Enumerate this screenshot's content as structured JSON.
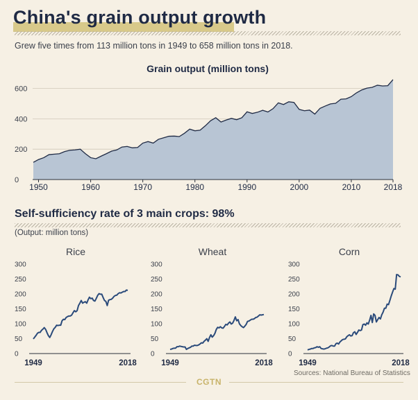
{
  "header": {
    "title": "China's grain output growth",
    "subtitle": "Grew five times from 113 million tons in 1949 to 658 million tons in 2018."
  },
  "section": {
    "title": "Self-sufficiency rate of 3 main crops: 98%",
    "unit_note": "(Output: million tons)"
  },
  "footer": {
    "brand": "CGTN",
    "source": "Sources: National Bureau of Statistics"
  },
  "colors": {
    "background": "#f6f0e4",
    "area_fill": "#b8c5d4",
    "line": "#2a4a7a",
    "text": "#1f2a44",
    "accent": "#d8c98a"
  },
  "chart_data": [
    {
      "type": "area",
      "title": "Grain output (million tons)",
      "xlim": [
        1949,
        2018
      ],
      "ylim": [
        0,
        680
      ],
      "yticks": [
        0,
        200,
        400,
        600
      ],
      "xticks": [
        1950,
        1960,
        1970,
        1980,
        1990,
        2000,
        2010,
        2018
      ],
      "grid": true,
      "x": [
        1949,
        1950,
        1951,
        1952,
        1953,
        1954,
        1955,
        1956,
        1957,
        1958,
        1959,
        1960,
        1961,
        1962,
        1963,
        1964,
        1965,
        1966,
        1967,
        1968,
        1969,
        1970,
        1971,
        1972,
        1973,
        1974,
        1975,
        1976,
        1977,
        1978,
        1979,
        1980,
        1981,
        1982,
        1983,
        1984,
        1985,
        1986,
        1987,
        1988,
        1989,
        1990,
        1991,
        1992,
        1993,
        1994,
        1995,
        1996,
        1997,
        1998,
        1999,
        2000,
        2001,
        2002,
        2003,
        2004,
        2005,
        2006,
        2007,
        2008,
        2009,
        2010,
        2011,
        2012,
        2013,
        2014,
        2015,
        2016,
        2017,
        2018
      ],
      "series": [
        {
          "values": [
            113,
            132,
            144,
            164,
            167,
            170,
            184,
            193,
            195,
            200,
            170,
            144,
            137,
            154,
            170,
            187,
            195,
            214,
            218,
            209,
            211,
            240,
            250,
            240,
            265,
            275,
            285,
            286,
            283,
            305,
            332,
            321,
            325,
            354,
            387,
            407,
            379,
            392,
            403,
            394,
            407,
            446,
            435,
            443,
            456,
            445,
            467,
            505,
            494,
            512,
            508,
            462,
            453,
            457,
            431,
            469,
            484,
            498,
            502,
            529,
            531,
            546,
            571,
            590,
            602,
            607,
            621,
            616,
            618,
            658
          ]
        }
      ]
    },
    {
      "type": "line",
      "title": "Rice",
      "xlim": [
        1949,
        2018
      ],
      "ylim": [
        0,
        300
      ],
      "yticks": [
        0,
        50,
        100,
        150,
        200,
        250,
        300
      ],
      "xticks": [
        1949,
        2018
      ],
      "grid": false,
      "x": [
        1949,
        1950,
        1951,
        1952,
        1953,
        1954,
        1955,
        1956,
        1957,
        1958,
        1959,
        1960,
        1961,
        1962,
        1963,
        1964,
        1965,
        1966,
        1967,
        1968,
        1969,
        1970,
        1971,
        1972,
        1973,
        1974,
        1975,
        1976,
        1977,
        1978,
        1979,
        1980,
        1981,
        1982,
        1983,
        1984,
        1985,
        1986,
        1987,
        1988,
        1989,
        1990,
        1991,
        1992,
        1993,
        1994,
        1995,
        1996,
        1997,
        1998,
        1999,
        2000,
        2001,
        2002,
        2003,
        2004,
        2005,
        2006,
        2007,
        2008,
        2009,
        2010,
        2011,
        2012,
        2013,
        2014,
        2015,
        2016,
        2017,
        2018
      ],
      "series": [
        {
          "values": [
            49,
            55,
            61,
            68,
            71,
            71,
            78,
            82,
            87,
            81,
            70,
            60,
            54,
            63,
            74,
            83,
            88,
            95,
            94,
            95,
            95,
            110,
            115,
            114,
            121,
            124,
            126,
            126,
            129,
            137,
            144,
            140,
            144,
            161,
            169,
            178,
            169,
            172,
            174,
            169,
            180,
            189,
            184,
            186,
            178,
            176,
            185,
            195,
            201,
            199,
            199,
            188,
            178,
            175,
            161,
            179,
            181,
            182,
            186,
            192,
            195,
            196,
            201,
            204,
            203,
            206,
            208,
            208,
            213,
            212
          ]
        }
      ]
    },
    {
      "type": "line",
      "title": "Wheat",
      "xlim": [
        1949,
        2018
      ],
      "ylim": [
        0,
        300
      ],
      "yticks": [
        0,
        50,
        100,
        150,
        200,
        250,
        300
      ],
      "xticks": [
        1949,
        2018
      ],
      "grid": false,
      "x": [
        1949,
        1950,
        1951,
        1952,
        1953,
        1954,
        1955,
        1956,
        1957,
        1958,
        1959,
        1960,
        1961,
        1962,
        1963,
        1964,
        1965,
        1966,
        1967,
        1968,
        1969,
        1970,
        1971,
        1972,
        1973,
        1974,
        1975,
        1976,
        1977,
        1978,
        1979,
        1980,
        1981,
        1982,
        1983,
        1984,
        1985,
        1986,
        1987,
        1988,
        1989,
        1990,
        1991,
        1992,
        1993,
        1994,
        1995,
        1996,
        1997,
        1998,
        1999,
        2000,
        2001,
        2002,
        2003,
        2004,
        2005,
        2006,
        2007,
        2008,
        2009,
        2010,
        2011,
        2012,
        2013,
        2014,
        2015,
        2016,
        2017,
        2018
      ],
      "series": [
        {
          "values": [
            14,
            15,
            17,
            18,
            18,
            23,
            23,
            25,
            24,
            23,
            22,
            22,
            14,
            17,
            19,
            21,
            25,
            25,
            28,
            27,
            27,
            29,
            32,
            36,
            35,
            41,
            45,
            50,
            41,
            54,
            63,
            55,
            60,
            68,
            81,
            88,
            86,
            90,
            86,
            85,
            91,
            98,
            96,
            102,
            106,
            99,
            102,
            111,
            123,
            110,
            114,
            100,
            94,
            90,
            87,
            92,
            98,
            108,
            109,
            112,
            115,
            115,
            117,
            121,
            122,
            126,
            130,
            129,
            130,
            131
          ]
        }
      ]
    },
    {
      "type": "line",
      "title": "Corn",
      "xlim": [
        1949,
        2018
      ],
      "ylim": [
        0,
        300
      ],
      "yticks": [
        0,
        50,
        100,
        150,
        200,
        250,
        300
      ],
      "xticks": [
        1949,
        2018
      ],
      "grid": false,
      "x": [
        1949,
        1950,
        1951,
        1952,
        1953,
        1954,
        1955,
        1956,
        1957,
        1958,
        1959,
        1960,
        1961,
        1962,
        1963,
        1964,
        1965,
        1966,
        1967,
        1968,
        1969,
        1970,
        1971,
        1972,
        1973,
        1974,
        1975,
        1976,
        1977,
        1978,
        1979,
        1980,
        1981,
        1982,
        1983,
        1984,
        1985,
        1986,
        1987,
        1988,
        1989,
        1990,
        1991,
        1992,
        1993,
        1994,
        1995,
        1996,
        1997,
        1998,
        1999,
        2000,
        2001,
        2002,
        2003,
        2004,
        2005,
        2006,
        2007,
        2008,
        2009,
        2010,
        2011,
        2012,
        2013,
        2014,
        2015,
        2016,
        2017,
        2018
      ],
      "series": [
        {
          "values": [
            12,
            14,
            15,
            17,
            17,
            19,
            20,
            23,
            21,
            23,
            17,
            16,
            15,
            16,
            18,
            19,
            22,
            26,
            27,
            25,
            25,
            33,
            35,
            32,
            39,
            43,
            47,
            48,
            49,
            56,
            60,
            63,
            59,
            60,
            70,
            73,
            64,
            71,
            79,
            77,
            79,
            97,
            99,
            95,
            103,
            99,
            112,
            128,
            104,
            133,
            128,
            106,
            114,
            121,
            116,
            130,
            139,
            152,
            152,
            166,
            164,
            178,
            193,
            206,
            218,
            216,
            265,
            264,
            259,
            257
          ]
        }
      ]
    }
  ]
}
